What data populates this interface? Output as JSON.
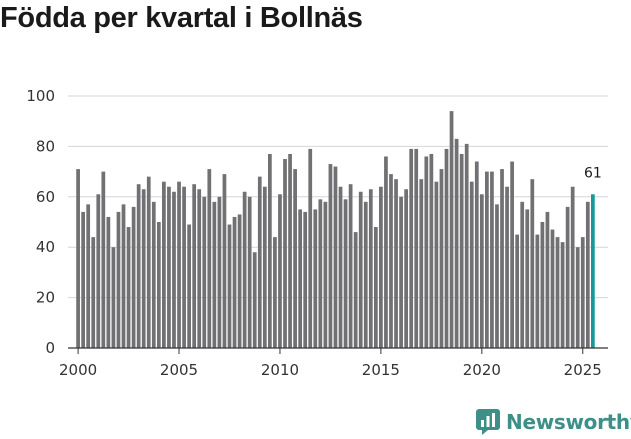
{
  "title": "Födda per kvartal i Bollnäs",
  "brand": {
    "name": "Newsworthy",
    "color": "#3d8f87"
  },
  "colors": {
    "bar": "#717073",
    "highlight": "#17989a",
    "axis": "#333333",
    "grid": "#d6d6d6"
  },
  "chart_data": {
    "type": "bar",
    "title": "Födda per kvartal i Bollnäs",
    "xlabel": "",
    "ylabel": "",
    "ylim": [
      0,
      100
    ],
    "y_ticks": [
      0,
      20,
      40,
      60,
      80,
      100
    ],
    "x_ticks": [
      "2000",
      "2005",
      "2010",
      "2015",
      "2020",
      "2025"
    ],
    "x_range": [
      1999.5,
      2026.25
    ],
    "grid": true,
    "categories": [
      "2000K1",
      "2000K2",
      "2000K3",
      "2000K4",
      "2001K1",
      "2001K2",
      "2001K3",
      "2001K4",
      "2002K1",
      "2002K2",
      "2002K3",
      "2002K4",
      "2003K1",
      "2003K2",
      "2003K3",
      "2003K4",
      "2004K1",
      "2004K2",
      "2004K3",
      "2004K4",
      "2005K1",
      "2005K2",
      "2005K3",
      "2005K4",
      "2006K1",
      "2006K2",
      "2006K3",
      "2006K4",
      "2007K1",
      "2007K2",
      "2007K3",
      "2007K4",
      "2008K1",
      "2008K2",
      "2008K3",
      "2008K4",
      "2009K1",
      "2009K2",
      "2009K3",
      "2009K4",
      "2010K1",
      "2010K2",
      "2010K3",
      "2010K4",
      "2011K1",
      "2011K2",
      "2011K3",
      "2011K4",
      "2012K1",
      "2012K2",
      "2012K3",
      "2012K4",
      "2013K1",
      "2013K2",
      "2013K3",
      "2013K4",
      "2014K1",
      "2014K2",
      "2014K3",
      "2014K4",
      "2015K1",
      "2015K2",
      "2015K3",
      "2015K4",
      "2016K1",
      "2016K2",
      "2016K3",
      "2016K4",
      "2017K1",
      "2017K2",
      "2017K3",
      "2017K4",
      "2018K1",
      "2018K2",
      "2018K3",
      "2018K4",
      "2019K1",
      "2019K2",
      "2019K3",
      "2019K4",
      "2020K1",
      "2020K2",
      "2020K3",
      "2020K4",
      "2021K1",
      "2021K2",
      "2021K3",
      "2021K4",
      "2022K1",
      "2022K2",
      "2022K3",
      "2022K4",
      "2023K1",
      "2023K2",
      "2023K3",
      "2023K4",
      "2024K1",
      "2024K2",
      "2024K3",
      "2024K4",
      "2025K1",
      "2025K2",
      "2025K3"
    ],
    "x_start": 2000.0,
    "x_step": 0.25,
    "values": [
      71,
      54,
      57,
      44,
      61,
      70,
      52,
      40,
      54,
      57,
      48,
      56,
      65,
      63,
      68,
      58,
      50,
      66,
      64,
      62,
      66,
      64,
      49,
      65,
      63,
      60,
      71,
      58,
      60,
      69,
      49,
      52,
      53,
      62,
      60,
      38,
      68,
      64,
      77,
      44,
      61,
      75,
      77,
      71,
      55,
      54,
      79,
      55,
      59,
      58,
      73,
      72,
      64,
      59,
      65,
      46,
      62,
      58,
      63,
      48,
      64,
      76,
      69,
      67,
      60,
      63,
      79,
      79,
      67,
      76,
      77,
      66,
      71,
      79,
      94,
      83,
      77,
      81,
      66,
      74,
      61,
      70,
      70,
      57,
      71,
      64,
      74,
      45,
      58,
      55,
      67,
      45,
      50,
      54,
      47,
      44,
      42,
      56,
      64,
      40,
      44,
      58,
      61
    ],
    "highlight_index": 102,
    "labels": [
      {
        "category": "2025K3",
        "value": 61,
        "text": "61"
      }
    ]
  }
}
